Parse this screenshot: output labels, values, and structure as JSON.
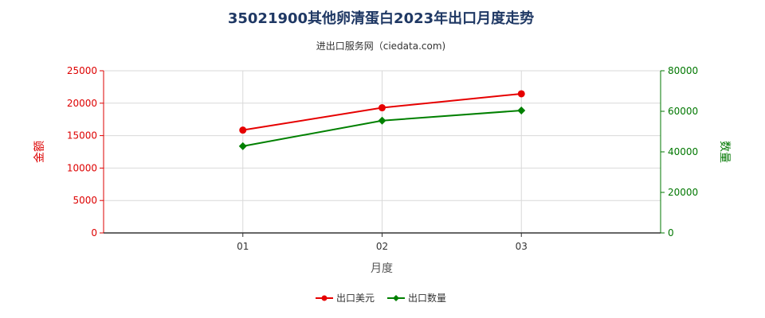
{
  "chart_data": {
    "type": "line",
    "title": "35021900其他卵清蛋白2023年出口月度走势",
    "subtitle": "进出口服务网（ciedata.com)",
    "xlabel": "月度",
    "categories": [
      "01",
      "02",
      "03"
    ],
    "y_left": {
      "label": "金额",
      "ylim": [
        0,
        25000
      ],
      "ticks": [
        "0",
        "5000",
        "10000",
        "15000",
        "20000",
        "25000"
      ],
      "color": "#dd0000"
    },
    "y_right": {
      "label": "数量",
      "ylim": [
        0,
        80000
      ],
      "ticks": [
        "0",
        "20000",
        "40000",
        "60000",
        "80000"
      ],
      "color": "#007700"
    },
    "series": [
      {
        "name": "出口美元",
        "axis": "left",
        "color": "#e60000",
        "marker": "circle",
        "values": [
          15850,
          19300,
          21450
        ]
      },
      {
        "name": "出口数量",
        "axis": "right",
        "color": "#008000",
        "marker": "diamond",
        "values": [
          42800,
          55400,
          60400
        ]
      }
    ],
    "grid": true,
    "legend": "bottom-center"
  }
}
